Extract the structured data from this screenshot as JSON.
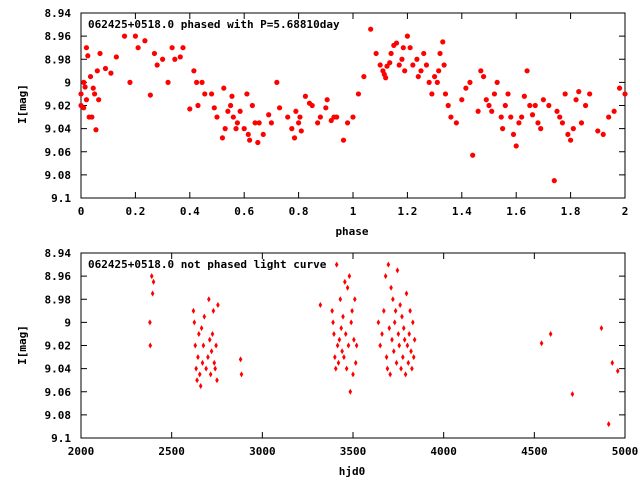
{
  "chart_data": [
    {
      "type": "scatter",
      "title": "062425+0518.0 phased with P=5.68810day",
      "xlabel": "phase",
      "ylabel": "I[mag]",
      "xlim": [
        0,
        2
      ],
      "ylim": [
        8.94,
        9.1
      ],
      "y_inverted": true,
      "grid": false,
      "marker_color": "#ff0000",
      "x_ticks": [
        0,
        0.2,
        0.4,
        0.6,
        0.8,
        1,
        1.2,
        1.4,
        1.6,
        1.8,
        2
      ],
      "x_tick_labels": [
        "0",
        "0.2",
        "0.4",
        "0.6",
        "0.8",
        "1",
        "1.2",
        "1.4",
        "1.6",
        "1.8",
        "2"
      ],
      "y_ticks": [
        8.94,
        8.96,
        8.98,
        9.0,
        9.02,
        9.04,
        9.06,
        9.08,
        9.1
      ],
      "y_tick_labels": [
        "8.94",
        "8.96",
        "8.98",
        "9",
        "9.02",
        "9.04",
        "9.06",
        "9.08",
        "9.1"
      ],
      "points": [
        [
          0.0,
          9.01
        ],
        [
          0.0,
          9.02
        ],
        [
          0.01,
          9.0
        ],
        [
          0.01,
          9.022
        ],
        [
          0.015,
          9.004
        ],
        [
          0.02,
          9.015
        ],
        [
          0.02,
          8.97
        ],
        [
          0.025,
          8.977
        ],
        [
          0.03,
          9.03
        ],
        [
          0.035,
          8.995
        ],
        [
          0.04,
          9.03
        ],
        [
          0.045,
          9.005
        ],
        [
          0.05,
          9.01
        ],
        [
          0.055,
          9.041
        ],
        [
          0.06,
          8.99
        ],
        [
          0.065,
          9.015
        ],
        [
          0.07,
          8.975
        ],
        [
          0.09,
          8.988
        ],
        [
          0.11,
          8.992
        ],
        [
          0.13,
          8.978
        ],
        [
          0.16,
          8.96
        ],
        [
          0.18,
          9.0
        ],
        [
          0.2,
          8.96
        ],
        [
          0.21,
          8.97
        ],
        [
          0.235,
          8.964
        ],
        [
          0.255,
          9.011
        ],
        [
          0.27,
          8.975
        ],
        [
          0.28,
          8.985
        ],
        [
          0.3,
          8.98
        ],
        [
          0.32,
          9.0
        ],
        [
          0.335,
          8.97
        ],
        [
          0.345,
          8.98
        ],
        [
          0.365,
          8.978
        ],
        [
          0.375,
          8.97
        ],
        [
          0.4,
          9.023
        ],
        [
          0.415,
          8.99
        ],
        [
          0.425,
          9.0
        ],
        [
          0.43,
          9.02
        ],
        [
          0.445,
          9.0
        ],
        [
          0.455,
          9.01
        ],
        [
          0.48,
          9.01
        ],
        [
          0.49,
          9.022
        ],
        [
          0.5,
          9.03
        ],
        [
          0.52,
          9.048
        ],
        [
          0.525,
          9.005
        ],
        [
          0.53,
          9.04
        ],
        [
          0.54,
          9.025
        ],
        [
          0.55,
          9.02
        ],
        [
          0.555,
          9.012
        ],
        [
          0.56,
          9.03
        ],
        [
          0.57,
          9.04
        ],
        [
          0.575,
          9.035
        ],
        [
          0.585,
          9.025
        ],
        [
          0.6,
          9.04
        ],
        [
          0.61,
          9.01
        ],
        [
          0.615,
          9.045
        ],
        [
          0.62,
          9.05
        ],
        [
          0.63,
          9.02
        ],
        [
          0.64,
          9.035
        ],
        [
          0.65,
          9.052
        ],
        [
          0.655,
          9.035
        ],
        [
          0.67,
          9.045
        ],
        [
          0.69,
          9.028
        ],
        [
          0.7,
          9.035
        ],
        [
          0.72,
          9.0
        ],
        [
          0.73,
          9.022
        ],
        [
          0.76,
          9.03
        ],
        [
          0.775,
          9.04
        ],
        [
          0.785,
          9.048
        ],
        [
          0.79,
          9.025
        ],
        [
          0.8,
          9.035
        ],
        [
          0.805,
          9.03
        ],
        [
          0.81,
          9.042
        ],
        [
          0.825,
          9.012
        ],
        [
          0.84,
          9.018
        ],
        [
          0.85,
          9.02
        ],
        [
          0.87,
          9.035
        ],
        [
          0.88,
          9.03
        ],
        [
          0.9,
          9.022
        ],
        [
          0.905,
          9.015
        ],
        [
          0.92,
          9.033
        ],
        [
          0.93,
          9.03
        ],
        [
          0.94,
          9.03
        ],
        [
          0.965,
          9.05
        ],
        [
          0.98,
          9.035
        ],
        [
          1.0,
          9.03
        ],
        [
          1.02,
          9.01
        ],
        [
          1.04,
          8.995
        ],
        [
          1.065,
          8.954
        ],
        [
          1.085,
          8.975
        ],
        [
          1.1,
          8.985
        ],
        [
          1.11,
          8.99
        ],
        [
          1.115,
          8.993
        ],
        [
          1.12,
          8.996
        ],
        [
          1.125,
          8.986
        ],
        [
          1.135,
          8.983
        ],
        [
          1.14,
          8.975
        ],
        [
          1.15,
          8.968
        ],
        [
          1.16,
          8.966
        ],
        [
          1.17,
          8.985
        ],
        [
          1.18,
          8.98
        ],
        [
          1.185,
          8.97
        ],
        [
          1.19,
          8.99
        ],
        [
          1.2,
          8.96
        ],
        [
          1.21,
          8.97
        ],
        [
          1.22,
          8.985
        ],
        [
          1.235,
          8.98
        ],
        [
          1.24,
          8.995
        ],
        [
          1.25,
          8.99
        ],
        [
          1.26,
          8.975
        ],
        [
          1.27,
          8.985
        ],
        [
          1.28,
          9.0
        ],
        [
          1.29,
          9.01
        ],
        [
          1.3,
          8.995
        ],
        [
          1.31,
          9.0
        ],
        [
          1.315,
          8.99
        ],
        [
          1.32,
          8.975
        ],
        [
          1.33,
          8.965
        ],
        [
          1.335,
          8.985
        ],
        [
          1.34,
          9.01
        ],
        [
          1.35,
          9.02
        ],
        [
          1.36,
          9.03
        ],
        [
          1.38,
          9.035
        ],
        [
          1.4,
          9.015
        ],
        [
          1.415,
          9.005
        ],
        [
          1.43,
          9.0
        ],
        [
          1.44,
          9.063
        ],
        [
          1.46,
          9.025
        ],
        [
          1.47,
          8.99
        ],
        [
          1.48,
          8.995
        ],
        [
          1.49,
          9.015
        ],
        [
          1.5,
          9.02
        ],
        [
          1.51,
          9.025
        ],
        [
          1.52,
          9.01
        ],
        [
          1.53,
          9.0
        ],
        [
          1.545,
          9.03
        ],
        [
          1.55,
          9.04
        ],
        [
          1.56,
          9.02
        ],
        [
          1.57,
          9.01
        ],
        [
          1.58,
          9.03
        ],
        [
          1.59,
          9.045
        ],
        [
          1.6,
          9.055
        ],
        [
          1.61,
          9.035
        ],
        [
          1.62,
          9.03
        ],
        [
          1.63,
          9.012
        ],
        [
          1.64,
          8.99
        ],
        [
          1.65,
          9.02
        ],
        [
          1.66,
          9.028
        ],
        [
          1.67,
          9.02
        ],
        [
          1.68,
          9.035
        ],
        [
          1.69,
          9.04
        ],
        [
          1.7,
          9.015
        ],
        [
          1.72,
          9.02
        ],
        [
          1.74,
          9.085
        ],
        [
          1.75,
          9.025
        ],
        [
          1.76,
          9.03
        ],
        [
          1.77,
          9.035
        ],
        [
          1.78,
          9.01
        ],
        [
          1.79,
          9.045
        ],
        [
          1.8,
          9.05
        ],
        [
          1.81,
          9.04
        ],
        [
          1.82,
          9.015
        ],
        [
          1.83,
          9.008
        ],
        [
          1.84,
          9.035
        ],
        [
          1.855,
          9.02
        ],
        [
          1.87,
          9.01
        ],
        [
          1.9,
          9.042
        ],
        [
          1.92,
          9.045
        ],
        [
          1.94,
          9.03
        ],
        [
          1.96,
          9.025
        ],
        [
          1.98,
          9.005
        ],
        [
          2.0,
          9.01
        ]
      ]
    },
    {
      "type": "scatter",
      "title": "062425+0518.0 not phased light curve",
      "xlabel": "hjd0",
      "ylabel": "I[mag]",
      "xlim": [
        2000,
        5000
      ],
      "ylim": [
        8.94,
        9.1
      ],
      "y_inverted": true,
      "grid": false,
      "marker_color": "#ff0000",
      "x_ticks": [
        2000,
        2500,
        3000,
        3500,
        4000,
        4500,
        5000
      ],
      "x_tick_labels": [
        "2000",
        "2500",
        "3000",
        "3500",
        "4000",
        "4500",
        "5000"
      ],
      "y_ticks": [
        8.94,
        8.96,
        8.98,
        9.0,
        9.02,
        9.04,
        9.06,
        9.08,
        9.1
      ],
      "y_tick_labels": [
        "8.94",
        "8.96",
        "8.98",
        "9",
        "9.02",
        "9.04",
        "9.06",
        "9.08",
        "9.1"
      ],
      "points": [
        [
          2380,
          9.0
        ],
        [
          2382,
          9.02
        ],
        [
          2390,
          8.96
        ],
        [
          2395,
          8.975
        ],
        [
          2400,
          8.965
        ],
        [
          2620,
          8.99
        ],
        [
          2625,
          9.0
        ],
        [
          2630,
          9.02
        ],
        [
          2635,
          9.04
        ],
        [
          2640,
          9.05
        ],
        [
          2645,
          9.03
        ],
        [
          2650,
          9.01
        ],
        [
          2655,
          9.045
        ],
        [
          2660,
          9.055
        ],
        [
          2665,
          9.005
        ],
        [
          2670,
          9.035
        ],
        [
          2675,
          9.02
        ],
        [
          2680,
          8.995
        ],
        [
          2690,
          9.04
        ],
        [
          2700,
          9.03
        ],
        [
          2705,
          8.98
        ],
        [
          2710,
          9.015
        ],
        [
          2715,
          9.045
        ],
        [
          2720,
          9.025
        ],
        [
          2725,
          9.01
        ],
        [
          2730,
          8.99
        ],
        [
          2735,
          9.035
        ],
        [
          2740,
          9.04
        ],
        [
          2745,
          9.02
        ],
        [
          2750,
          9.05
        ],
        [
          2755,
          8.985
        ],
        [
          2880,
          9.032
        ],
        [
          2885,
          9.045
        ],
        [
          3320,
          8.985
        ],
        [
          3385,
          8.99
        ],
        [
          3390,
          9.0
        ],
        [
          3395,
          9.01
        ],
        [
          3400,
          9.03
        ],
        [
          3405,
          9.04
        ],
        [
          3410,
          8.95
        ],
        [
          3415,
          9.02
        ],
        [
          3420,
          9.035
        ],
        [
          3425,
          9.015
        ],
        [
          3430,
          8.98
        ],
        [
          3435,
          9.005
        ],
        [
          3440,
          9.025
        ],
        [
          3445,
          8.995
        ],
        [
          3450,
          9.03
        ],
        [
          3455,
          8.965
        ],
        [
          3460,
          9.01
        ],
        [
          3465,
          9.04
        ],
        [
          3470,
          8.97
        ],
        [
          3475,
          9.02
        ],
        [
          3480,
          8.96
        ],
        [
          3485,
          9.06
        ],
        [
          3490,
          9.0
        ],
        [
          3495,
          8.99
        ],
        [
          3500,
          9.045
        ],
        [
          3505,
          9.015
        ],
        [
          3510,
          8.98
        ],
        [
          3515,
          9.035
        ],
        [
          3520,
          9.02
        ],
        [
          3640,
          9.0
        ],
        [
          3650,
          9.02
        ],
        [
          3660,
          9.01
        ],
        [
          3670,
          8.99
        ],
        [
          3680,
          8.96
        ],
        [
          3685,
          9.03
        ],
        [
          3690,
          9.04
        ],
        [
          3695,
          8.95
        ],
        [
          3700,
          9.005
        ],
        [
          3705,
          9.045
        ],
        [
          3710,
          8.97
        ],
        [
          3715,
          9.015
        ],
        [
          3720,
          8.98
        ],
        [
          3725,
          9.025
        ],
        [
          3730,
          9.0
        ],
        [
          3735,
          8.99
        ],
        [
          3740,
          9.035
        ],
        [
          3745,
          8.955
        ],
        [
          3750,
          9.01
        ],
        [
          3755,
          9.02
        ],
        [
          3760,
          8.985
        ],
        [
          3765,
          9.04
        ],
        [
          3770,
          8.995
        ],
        [
          3775,
          9.03
        ],
        [
          3780,
          9.005
        ],
        [
          3785,
          9.015
        ],
        [
          3790,
          9.045
        ],
        [
          3795,
          8.975
        ],
        [
          3800,
          9.02
        ],
        [
          3805,
          9.035
        ],
        [
          3810,
          9.01
        ],
        [
          3815,
          8.99
        ],
        [
          3820,
          9.025
        ],
        [
          3825,
          9.04
        ],
        [
          3830,
          9.0
        ],
        [
          3835,
          9.03
        ],
        [
          3840,
          9.015
        ],
        [
          4540,
          9.018
        ],
        [
          4590,
          9.01
        ],
        [
          4710,
          9.062
        ],
        [
          4870,
          9.005
        ],
        [
          4910,
          9.088
        ],
        [
          4930,
          9.035
        ],
        [
          4960,
          9.042
        ]
      ]
    }
  ]
}
